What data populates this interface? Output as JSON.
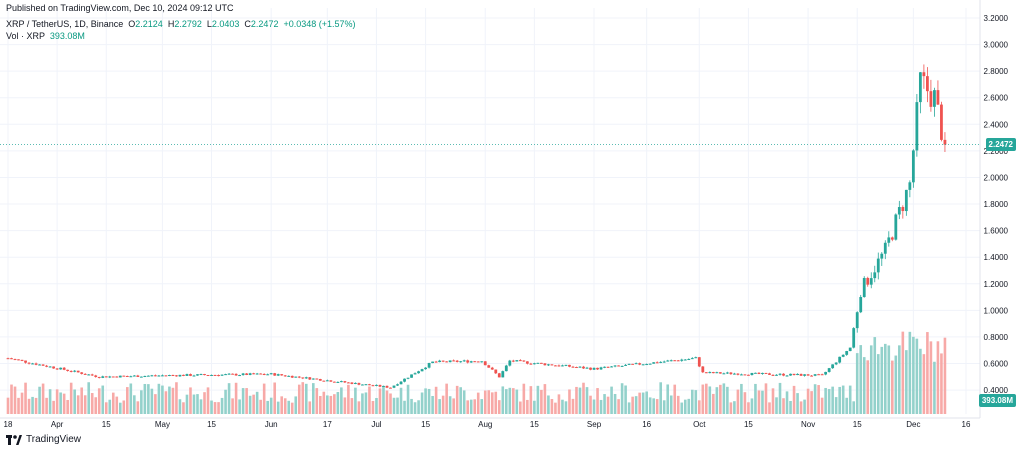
{
  "header": {
    "published": "Published on TradingView.com, Dec 10, 2024 09:12 UTC",
    "symbol": "XRP / TetherUS, 1D, Binance",
    "o_label": "O",
    "o_value": "2.2124",
    "h_label": "H",
    "h_value": "2.2792",
    "l_label": "L",
    "l_value": "2.0403",
    "c_label": "C",
    "c_value": "2.2472",
    "change": "+0.0348 (+1.57%)",
    "vol_label": "Vol · XRP",
    "vol_value": "393.08M"
  },
  "logo_text": "TradingView",
  "colors": {
    "up": "#26a69a",
    "down": "#ef5350",
    "up_volume": "#93d1cb",
    "down_volume": "#f7a9a7",
    "price_line": "#26a69a",
    "grid": "#f0f3fa",
    "text": "#131722"
  },
  "chart_data": {
    "type": "candlestick",
    "symbol": "XRP / TetherUS",
    "interval": "1D",
    "exchange": "Binance",
    "last_price": 2.2472,
    "last_price_label": "2.2472",
    "last_volume_label": "393.08M",
    "y_ticks": [
      "0.4000",
      "0.6000",
      "0.8000",
      "1.0000",
      "1.2000",
      "1.4000",
      "1.6000",
      "1.8000",
      "2.0000",
      "2.2000",
      "2.4000",
      "2.6000",
      "2.8000",
      "3.0000",
      "3.2000"
    ],
    "ylim": [
      0.22,
      3.2
    ],
    "x_tick_labels": [
      "18",
      "Apr",
      "15",
      "May",
      "15",
      "Jun",
      "17",
      "Jul",
      "15",
      "Aug",
      "15",
      "Sep",
      "16",
      "Oct",
      "15",
      "Nov",
      "15",
      "Dec",
      "16"
    ],
    "grid": true,
    "ohlc_milestones": [
      {
        "date": "Mar 18",
        "close": 0.64
      },
      {
        "date": "Apr 13",
        "close": 0.5
      },
      {
        "date": "May 1",
        "close": 0.51
      },
      {
        "date": "Jun 1",
        "close": 0.52
      },
      {
        "date": "Jul 5",
        "close": 0.42
      },
      {
        "date": "Jul 17",
        "close": 0.61
      },
      {
        "date": "Jul 31",
        "close": 0.62
      },
      {
        "date": "Aug 5",
        "close": 0.5
      },
      {
        "date": "Aug 8",
        "close": 0.62
      },
      {
        "date": "Sep 1",
        "close": 0.56
      },
      {
        "date": "Sep 30",
        "close": 0.64
      },
      {
        "date": "Oct 2",
        "close": 0.53
      },
      {
        "date": "Nov 5",
        "close": 0.51
      },
      {
        "date": "Nov 13",
        "close": 0.72
      },
      {
        "date": "Nov 16",
        "close": 1.15
      },
      {
        "date": "Nov 23",
        "close": 1.45
      },
      {
        "date": "Nov 30",
        "close": 1.95
      },
      {
        "date": "Dec 3",
        "close": 2.72
      },
      {
        "date": "Dec 7",
        "close": 2.6
      },
      {
        "date": "Dec 10",
        "close": 2.2472
      }
    ]
  }
}
